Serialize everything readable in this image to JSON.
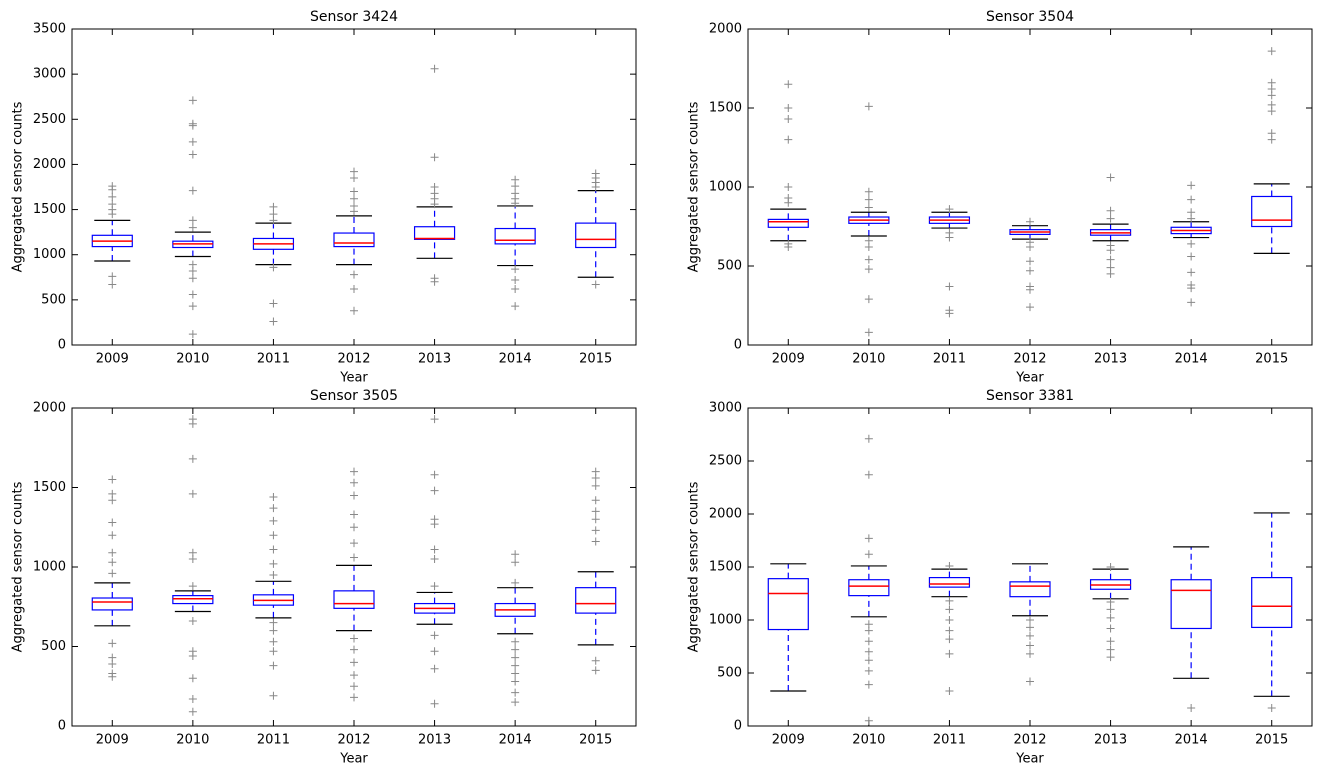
{
  "chart_data": [
    {
      "type": "box",
      "title": "Sensor 3424",
      "xlabel": "Year",
      "ylabel": "Aggregated sensor counts",
      "categories": [
        "2009",
        "2010",
        "2011",
        "2012",
        "2013",
        "2014",
        "2015"
      ],
      "ylim": [
        0,
        3500
      ],
      "yticks": [
        0,
        500,
        1000,
        1500,
        2000,
        2500,
        3000,
        3500
      ],
      "box_color": "#0000ff",
      "median_color": "#ff0000",
      "cap_color": "#000000",
      "flier_color": "#888888",
      "boxes": [
        {
          "whislo": 930,
          "q1": 1090,
          "med": 1150,
          "q3": 1215,
          "whishi": 1380,
          "fliers": [
            670,
            760,
            1450,
            1500,
            1560,
            1640,
            1720,
            1760
          ]
        },
        {
          "whislo": 980,
          "q1": 1080,
          "med": 1120,
          "q3": 1150,
          "whishi": 1250,
          "fliers": [
            120,
            430,
            560,
            740,
            820,
            890,
            1300,
            1380,
            1710,
            2110,
            2250,
            2430,
            2450,
            2710
          ]
        },
        {
          "whislo": 890,
          "q1": 1060,
          "med": 1120,
          "q3": 1180,
          "whishi": 1350,
          "fliers": [
            260,
            460,
            860,
            1380,
            1450,
            1530
          ]
        },
        {
          "whislo": 890,
          "q1": 1090,
          "med": 1130,
          "q3": 1240,
          "whishi": 1430,
          "fliers": [
            380,
            620,
            780,
            1480,
            1540,
            1620,
            1700,
            1850,
            1920
          ]
        },
        {
          "whislo": 960,
          "q1": 1170,
          "med": 1180,
          "q3": 1310,
          "whishi": 1530,
          "fliers": [
            700,
            740,
            1560,
            1620,
            1680,
            1750,
            2080,
            3060
          ]
        },
        {
          "whislo": 880,
          "q1": 1120,
          "med": 1160,
          "q3": 1290,
          "whishi": 1540,
          "fliers": [
            430,
            620,
            720,
            840,
            1570,
            1620,
            1680,
            1760,
            1830
          ]
        },
        {
          "whislo": 750,
          "q1": 1080,
          "med": 1170,
          "q3": 1350,
          "whishi": 1710,
          "fliers": [
            670,
            1750,
            1800,
            1850,
            1900
          ]
        }
      ]
    },
    {
      "type": "box",
      "title": "Sensor 3504",
      "xlabel": "Year",
      "ylabel": "Aggregated sensor counts",
      "categories": [
        "2009",
        "2010",
        "2011",
        "2012",
        "2013",
        "2014",
        "2015"
      ],
      "ylim": [
        0,
        2000
      ],
      "yticks": [
        0,
        500,
        1000,
        1500,
        2000
      ],
      "box_color": "#0000ff",
      "median_color": "#ff0000",
      "cap_color": "#000000",
      "flier_color": "#888888",
      "boxes": [
        {
          "whislo": 660,
          "q1": 745,
          "med": 780,
          "q3": 795,
          "whishi": 860,
          "fliers": [
            620,
            640,
            900,
            930,
            1000,
            1300,
            1430,
            1500,
            1650
          ]
        },
        {
          "whislo": 690,
          "q1": 770,
          "med": 790,
          "q3": 810,
          "whishi": 840,
          "fliers": [
            80,
            290,
            480,
            540,
            620,
            660,
            870,
            920,
            970,
            1510
          ]
        },
        {
          "whislo": 740,
          "q1": 770,
          "med": 790,
          "q3": 810,
          "whishi": 840,
          "fliers": [
            200,
            220,
            370,
            680,
            710,
            860
          ]
        },
        {
          "whislo": 670,
          "q1": 700,
          "med": 715,
          "q3": 730,
          "whishi": 755,
          "fliers": [
            240,
            350,
            370,
            470,
            530,
            620,
            650,
            780
          ]
        },
        {
          "whislo": 660,
          "q1": 695,
          "med": 710,
          "q3": 730,
          "whishi": 765,
          "fliers": [
            450,
            490,
            540,
            600,
            630,
            800,
            850,
            1060
          ]
        },
        {
          "whislo": 680,
          "q1": 705,
          "med": 725,
          "q3": 745,
          "whishi": 780,
          "fliers": [
            270,
            360,
            380,
            460,
            560,
            640,
            800,
            840,
            920,
            1010
          ]
        },
        {
          "whislo": 580,
          "q1": 750,
          "med": 790,
          "q3": 940,
          "whishi": 1020,
          "fliers": [
            1300,
            1340,
            1480,
            1520,
            1580,
            1620,
            1660,
            1860
          ]
        }
      ]
    },
    {
      "type": "box",
      "title": "Sensor 3505",
      "xlabel": "Year",
      "ylabel": "Aggregated sensor counts",
      "categories": [
        "2009",
        "2010",
        "2011",
        "2012",
        "2013",
        "2014",
        "2015"
      ],
      "ylim": [
        0,
        2000
      ],
      "yticks": [
        0,
        500,
        1000,
        1500,
        2000
      ],
      "box_color": "#0000ff",
      "median_color": "#ff0000",
      "cap_color": "#000000",
      "flier_color": "#888888",
      "boxes": [
        {
          "whislo": 630,
          "q1": 730,
          "med": 780,
          "q3": 805,
          "whishi": 900,
          "fliers": [
            310,
            330,
            390,
            430,
            520,
            960,
            1030,
            1090,
            1200,
            1280,
            1420,
            1460,
            1550
          ]
        },
        {
          "whislo": 720,
          "q1": 770,
          "med": 800,
          "q3": 820,
          "whishi": 850,
          "fliers": [
            90,
            170,
            300,
            440,
            470,
            660,
            880,
            1050,
            1090,
            1460,
            1680,
            1900,
            1930
          ]
        },
        {
          "whislo": 680,
          "q1": 760,
          "med": 790,
          "q3": 825,
          "whishi": 910,
          "fliers": [
            190,
            380,
            470,
            530,
            600,
            650,
            950,
            1020,
            1110,
            1200,
            1290,
            1370,
            1440
          ]
        },
        {
          "whislo": 600,
          "q1": 740,
          "med": 770,
          "q3": 850,
          "whishi": 1010,
          "fliers": [
            180,
            250,
            320,
            400,
            480,
            550,
            1060,
            1150,
            1250,
            1330,
            1450,
            1530,
            1600
          ]
        },
        {
          "whislo": 640,
          "q1": 710,
          "med": 740,
          "q3": 770,
          "whishi": 840,
          "fliers": [
            140,
            360,
            470,
            570,
            880,
            1050,
            1110,
            1270,
            1300,
            1480,
            1580,
            1930
          ]
        },
        {
          "whislo": 580,
          "q1": 690,
          "med": 730,
          "q3": 770,
          "whishi": 870,
          "fliers": [
            150,
            210,
            280,
            330,
            380,
            430,
            480,
            530,
            900,
            1030,
            1080
          ]
        },
        {
          "whislo": 510,
          "q1": 710,
          "med": 770,
          "q3": 870,
          "whishi": 970,
          "fliers": [
            350,
            410,
            1160,
            1230,
            1300,
            1350,
            1420,
            1510,
            1560,
            1600
          ]
        }
      ]
    },
    {
      "type": "box",
      "title": "Sensor 3381",
      "xlabel": "Year",
      "ylabel": "Aggregated sensor counts",
      "categories": [
        "2009",
        "2010",
        "2011",
        "2012",
        "2013",
        "2014",
        "2015"
      ],
      "ylim": [
        0,
        3000
      ],
      "yticks": [
        0,
        500,
        1000,
        1500,
        2000,
        2500,
        3000
      ],
      "box_color": "#0000ff",
      "median_color": "#ff0000",
      "cap_color": "#000000",
      "flier_color": "#888888",
      "boxes": [
        {
          "whislo": 330,
          "q1": 910,
          "med": 1250,
          "q3": 1390,
          "whishi": 1530,
          "fliers": []
        },
        {
          "whislo": 1030,
          "q1": 1230,
          "med": 1320,
          "q3": 1380,
          "whishi": 1510,
          "fliers": [
            50,
            390,
            520,
            620,
            700,
            800,
            900,
            960,
            1620,
            1770,
            2370,
            2710
          ]
        },
        {
          "whislo": 1220,
          "q1": 1310,
          "med": 1340,
          "q3": 1400,
          "whishi": 1480,
          "fliers": [
            330,
            680,
            820,
            900,
            1000,
            1100,
            1180,
            1510
          ]
        },
        {
          "whislo": 1040,
          "q1": 1220,
          "med": 1320,
          "q3": 1360,
          "whishi": 1530,
          "fliers": [
            420,
            680,
            760,
            850,
            930,
            1000
          ]
        },
        {
          "whislo": 1200,
          "q1": 1290,
          "med": 1330,
          "q3": 1380,
          "whishi": 1480,
          "fliers": [
            650,
            720,
            800,
            920,
            1020,
            1100,
            1170,
            1500
          ]
        },
        {
          "whislo": 450,
          "q1": 920,
          "med": 1280,
          "q3": 1380,
          "whishi": 1690,
          "fliers": [
            170
          ]
        },
        {
          "whislo": 280,
          "q1": 930,
          "med": 1130,
          "q3": 1400,
          "whishi": 2010,
          "fliers": [
            170
          ]
        }
      ]
    }
  ]
}
